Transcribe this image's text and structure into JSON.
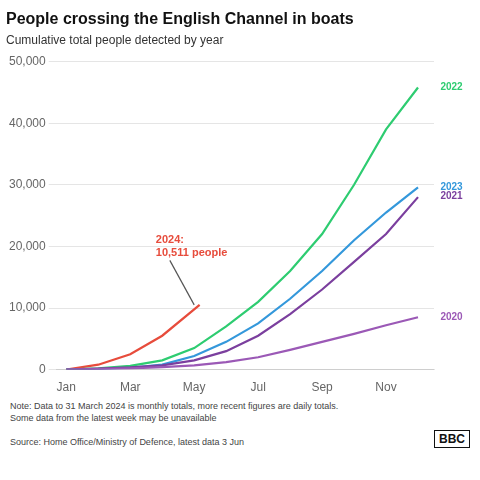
{
  "chart_data": {
    "type": "line",
    "title": "People crossing the English Channel in boats",
    "subtitle": "Cumulative total people detected by year",
    "note": "Note: Data to 31 March 2024 is monthly totals, more recent figures are daily totals.\nSome data from the latest week may be unavailable",
    "source": "Source: Home Office/Ministry of Defence, latest data 3 Jun",
    "credit": "BBC",
    "xlim": [
      -0.3,
      11.5
    ],
    "xticks": [
      {
        "value": 0,
        "label": "Jan"
      },
      {
        "value": 2,
        "label": "Mar"
      },
      {
        "value": 4,
        "label": "May"
      },
      {
        "value": 6,
        "label": "Jul"
      },
      {
        "value": 8,
        "label": "Sep"
      },
      {
        "value": 10,
        "label": "Nov"
      }
    ],
    "ylim": [
      0,
      50000
    ],
    "yticks": [
      0,
      {
        "value": 10000,
        "label": "10,000"
      },
      {
        "value": 20000,
        "label": "20,000"
      },
      {
        "value": 30000,
        "label": "30,000"
      },
      {
        "value": 40000,
        "label": "40,000"
      },
      {
        "value": 50000,
        "label": "50,000"
      }
    ],
    "grid": "y",
    "series": [
      {
        "name": "2020",
        "color": "#9b59b6",
        "x": [
          0,
          1,
          2,
          3,
          4,
          5,
          6,
          7,
          8,
          9,
          10,
          11
        ],
        "values": [
          0,
          100,
          200,
          400,
          700,
          1200,
          2000,
          3200,
          4500,
          5800,
          7200,
          8500
        ]
      },
      {
        "name": "2021",
        "color": "#7b3f9e",
        "x": [
          0,
          1,
          2,
          3,
          4,
          5,
          6,
          7,
          8,
          9,
          10,
          11
        ],
        "values": [
          0,
          150,
          350,
          700,
          1500,
          3000,
          5500,
          9000,
          13000,
          17500,
          22000,
          28000
        ]
      },
      {
        "name": "2022",
        "color": "#2ecc71",
        "x": [
          0,
          1,
          2,
          3,
          4,
          5,
          6,
          7,
          8,
          9,
          10,
          11
        ],
        "values": [
          0,
          200,
          600,
          1500,
          3500,
          7000,
          11000,
          16000,
          22000,
          30000,
          39000,
          45800
        ]
      },
      {
        "name": "2023",
        "color": "#3498db",
        "x": [
          0,
          1,
          2,
          3,
          4,
          5,
          6,
          7,
          8,
          9,
          10,
          11
        ],
        "values": [
          0,
          100,
          300,
          800,
          2200,
          4500,
          7500,
          11500,
          16000,
          21000,
          25500,
          29600
        ]
      },
      {
        "name": "2024",
        "color": "#e74c3c",
        "x": [
          0,
          1,
          2,
          3,
          4.17
        ],
        "values": [
          0,
          800,
          2500,
          5500,
          10511
        ]
      }
    ],
    "annotations": [
      {
        "text": "2020",
        "x": 11.7,
        "y": 8500,
        "color": "#9b59b6"
      },
      {
        "text": "2021",
        "x": 11.7,
        "y": 28200,
        "color": "#7b3f9e"
      },
      {
        "text": "2022",
        "x": 11.7,
        "y": 45800,
        "color": "#2ecc71"
      },
      {
        "text": "2023",
        "x": 11.7,
        "y": 29600,
        "color": "#3498db"
      },
      {
        "text": "2024:\n10,511 people",
        "x": 2.8,
        "y": 20000,
        "point": {
          "x": 4.0,
          "y": 10511
        },
        "color": "#e74c3c"
      }
    ]
  }
}
